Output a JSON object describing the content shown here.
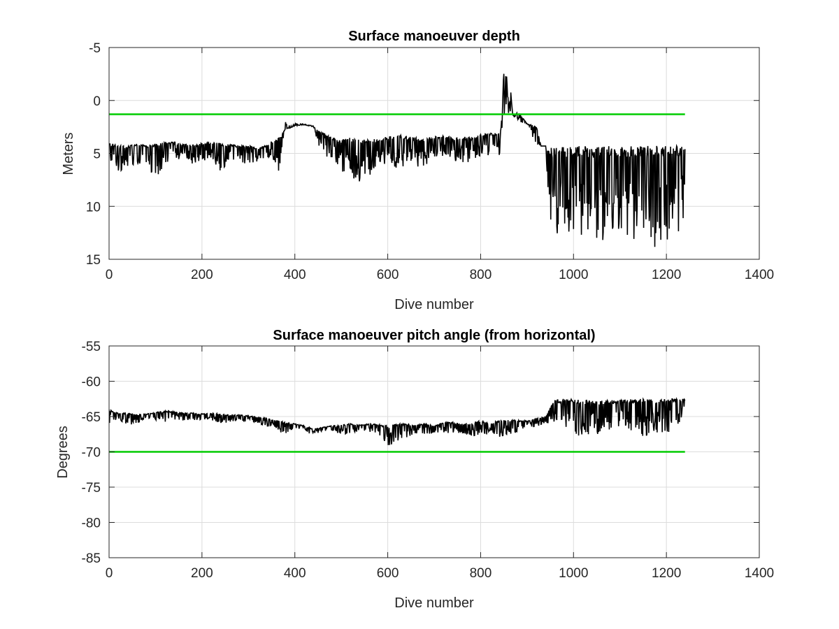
{
  "chart_data": [
    {
      "type": "line",
      "title": "Surface manoeuver depth",
      "xlabel": "Dive number",
      "ylabel": "Meters",
      "xlim": [
        0,
        1400
      ],
      "ylim": [
        -5,
        15
      ],
      "y_reversed": true,
      "xticks": [
        0,
        200,
        400,
        600,
        800,
        1000,
        1200,
        1400
      ],
      "yticks": [
        -5,
        0,
        5,
        10,
        15
      ],
      "grid": true,
      "legend": false,
      "series": [
        {
          "color": "#000000",
          "style": "spiky",
          "x": [
            0,
            20,
            40,
            60,
            80,
            100,
            120,
            140,
            160,
            180,
            200,
            220,
            240,
            260,
            280,
            300,
            320,
            340,
            360,
            370,
            380,
            390,
            400,
            420,
            440,
            460,
            480,
            500,
            520,
            540,
            560,
            580,
            600,
            620,
            640,
            660,
            680,
            700,
            720,
            740,
            760,
            780,
            800,
            820,
            840,
            850,
            855,
            860,
            865,
            870,
            880,
            900,
            920,
            930,
            940,
            950,
            1000,
            1050,
            1100,
            1150,
            1200,
            1240
          ],
          "y": [
            4,
            4.2,
            4.3,
            4.1,
            4.2,
            4,
            4,
            3.9,
            4.1,
            4.2,
            4,
            3.9,
            4,
            4.1,
            4.3,
            4.2,
            4.5,
            4.2,
            3.5,
            3.2,
            2.7,
            2.6,
            2.4,
            2.3,
            2.5,
            3,
            3.5,
            3.6,
            3.5,
            3.7,
            3.7,
            3.6,
            3.4,
            3.2,
            3.4,
            3.5,
            3.6,
            3.4,
            3.3,
            3.5,
            3.4,
            3.5,
            3.2,
            3.1,
            3.0,
            2.5,
            -3.5,
            1.2,
            -0.8,
            1.8,
            1.0,
            2.2,
            2.4,
            4.3,
            4.3,
            4.4,
            4.3,
            4.3,
            4.3,
            4.3,
            4.3,
            4.3
          ],
          "y_low": [
            6.5,
            6.8,
            6.2,
            6.0,
            6.1,
            7.9,
            6.0,
            5.6,
            5.5,
            6.0,
            5.7,
            5.6,
            6.7,
            5.7,
            5.8,
            6.1,
            5.8,
            5.3,
            6.5,
            6.8,
            1.8,
            2.4,
            2.2,
            2.2,
            2.4,
            6.0,
            5.5,
            6.8,
            7.0,
            8.3,
            7.2,
            6.5,
            6.0,
            6.5,
            6.3,
            6.3,
            6.2,
            5.4,
            5.3,
            5.6,
            6.0,
            5.8,
            5.2,
            5.5,
            6.2,
            -3.5,
            0.8,
            -0.8,
            1.6,
            1.2,
            2.0,
            2.2,
            4.3,
            4.3,
            4.3,
            13.6,
            13.2,
            13.5,
            13.0,
            13.2,
            14.8,
            11.2
          ]
        },
        {
          "color": "#00cc00",
          "style": "flat",
          "x": [
            0,
            1240
          ],
          "y": [
            1.3,
            1.3
          ]
        }
      ]
    },
    {
      "type": "line",
      "title": "Surface manoeuver pitch angle (from horizontal)",
      "xlabel": "Dive number",
      "ylabel": "Degrees",
      "xlim": [
        0,
        1400
      ],
      "ylim": [
        -85,
        -55
      ],
      "xticks": [
        0,
        200,
        400,
        600,
        800,
        1000,
        1200,
        1400
      ],
      "yticks": [
        -85,
        -80,
        -75,
        -70,
        -65,
        -60,
        -55
      ],
      "grid": true,
      "legend": false,
      "series": [
        {
          "color": "#000000",
          "style": "spiky",
          "x": [
            0,
            20,
            40,
            60,
            80,
            100,
            120,
            140,
            160,
            180,
            200,
            220,
            240,
            260,
            280,
            300,
            320,
            340,
            360,
            380,
            400,
            420,
            440,
            460,
            480,
            500,
            520,
            540,
            560,
            580,
            600,
            620,
            640,
            660,
            680,
            700,
            720,
            740,
            760,
            780,
            800,
            820,
            840,
            860,
            880,
            900,
            920,
            940,
            960,
            1000,
            1050,
            1100,
            1150,
            1200,
            1240
          ],
          "y": [
            -64,
            -64.5,
            -64.5,
            -64.7,
            -64.6,
            -64.4,
            -64.2,
            -64.3,
            -64.5,
            -64.5,
            -64.6,
            -64.5,
            -64.6,
            -64.8,
            -64.7,
            -64.9,
            -65.0,
            -65.2,
            -65.5,
            -65.8,
            -66.0,
            -66.3,
            -66.8,
            -66.5,
            -66.3,
            -66.2,
            -66.0,
            -66.2,
            -66.0,
            -66.1,
            -66.3,
            -66.0,
            -66.0,
            -66.2,
            -66.0,
            -66.3,
            -65.8,
            -65.8,
            -66.0,
            -66.0,
            -65.5,
            -66.0,
            -65.5,
            -65.5,
            -65.5,
            -65.6,
            -65.3,
            -65.0,
            -62.5,
            -62.5,
            -62.8,
            -62.6,
            -62.5,
            -62.5,
            -62.5
          ],
          "y_low": [
            -66,
            -65.5,
            -66.3,
            -66.0,
            -65.5,
            -65.5,
            -65.8,
            -65.5,
            -65.6,
            -65.5,
            -65.5,
            -65.5,
            -66.0,
            -65.8,
            -65.8,
            -65.8,
            -66.0,
            -66.5,
            -67.0,
            -67.5,
            -67.0,
            -67.3,
            -67.5,
            -67.2,
            -67.0,
            -67.6,
            -67.3,
            -67.0,
            -67.5,
            -67.5,
            -69.5,
            -68.5,
            -68.0,
            -67.5,
            -67.5,
            -67.6,
            -67.5,
            -67.3,
            -67.5,
            -67.8,
            -67.5,
            -67.8,
            -68.0,
            -67.5,
            -67.3,
            -66.5,
            -66.5,
            -66.0,
            -67.3,
            -68.0,
            -67.5,
            -67.0,
            -67.8,
            -67.5,
            -65.2
          ]
        },
        {
          "color": "#00cc00",
          "style": "flat",
          "x": [
            0,
            1240
          ],
          "y": [
            -70,
            -70
          ]
        }
      ]
    }
  ]
}
